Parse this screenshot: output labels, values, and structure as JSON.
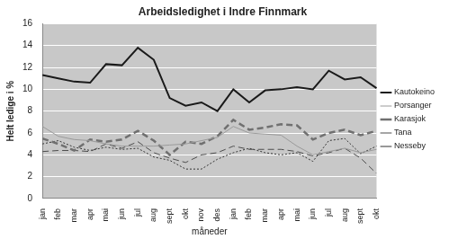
{
  "chart_data": {
    "type": "line",
    "title": "Arbeidsledighet i Indre Finnmark",
    "x_label": "måneder",
    "y_label": "Helt ledige i %",
    "categories": [
      "jan",
      "feb",
      "mar",
      "apr",
      "mai",
      "jun",
      "jul",
      "aug",
      "sept",
      "okt",
      "nov",
      "des",
      "jan",
      "feb",
      "mar",
      "apr",
      "mai",
      "jun",
      "jul",
      "aug",
      "sept",
      "okt"
    ],
    "series": [
      {
        "name": "Kautokeino",
        "color": "#1a1a1a",
        "line_style": "solid",
        "values": [
          11.3,
          11.0,
          10.7,
          10.6,
          12.3,
          12.2,
          13.8,
          12.7,
          9.2,
          8.5,
          8.8,
          8.0,
          10.0,
          8.8,
          9.9,
          10.0,
          10.2,
          10.0,
          11.7,
          10.9,
          11.1,
          10.1
        ]
      },
      {
        "name": "Porsanger",
        "color": "#9a9a9a",
        "line_style": "solid",
        "values": [
          6.6,
          5.7,
          5.4,
          5.3,
          5.0,
          4.8,
          4.8,
          4.8,
          4.9,
          5.0,
          5.3,
          5.6,
          6.6,
          6.0,
          5.9,
          5.8,
          4.8,
          4.0,
          4.3,
          4.6,
          4.2,
          4.5
        ]
      },
      {
        "name": "Karasjok",
        "color": "#707070",
        "line_style": "dashed",
        "values": [
          5.5,
          5.0,
          4.4,
          5.4,
          5.2,
          5.4,
          6.2,
          5.3,
          4.0,
          5.2,
          5.0,
          5.7,
          7.2,
          6.3,
          6.5,
          6.8,
          6.7,
          5.4,
          6.0,
          6.3,
          5.8,
          6.2
        ]
      },
      {
        "name": "Tana",
        "color": "#4d4d4d",
        "line_style": "dashed",
        "values": [
          4.3,
          4.4,
          4.4,
          4.3,
          5.0,
          4.6,
          5.2,
          4.2,
          3.7,
          3.3,
          4.0,
          4.2,
          4.8,
          4.5,
          4.5,
          4.5,
          4.3,
          3.9,
          4.2,
          4.6,
          3.7,
          2.3
        ]
      },
      {
        "name": "Nesseby",
        "color": "#333333",
        "line_style": "dotted",
        "values": [
          5.0,
          5.3,
          4.7,
          4.4,
          4.7,
          4.5,
          4.6,
          3.8,
          3.5,
          2.7,
          2.7,
          3.6,
          4.2,
          4.6,
          4.2,
          4.0,
          4.2,
          3.4,
          5.3,
          5.5,
          4.1,
          4.8
        ]
      }
    ],
    "ylim": [
      0,
      16
    ],
    "yticks": [
      0,
      2,
      4,
      6,
      8,
      10,
      12,
      14,
      16
    ],
    "grid": true,
    "legend": "right"
  }
}
